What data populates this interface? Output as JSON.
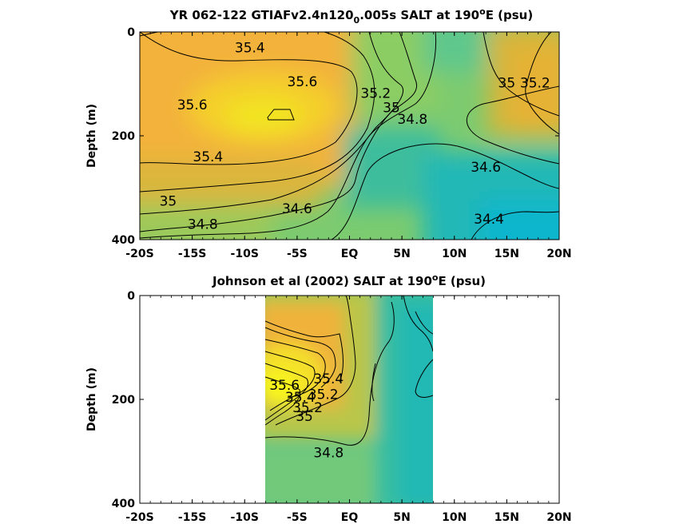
{
  "chart_data": [
    {
      "type": "contour",
      "title_prefix": "YR 062-122 GTIAFv2.4n120",
      "title_sub": "0",
      "title_mid": ".005s SALT at 190",
      "title_sup": "o",
      "title_suffix": "E (psu)",
      "ylabel": "Depth (m)",
      "xlim": [
        -20,
        20
      ],
      "ylim": [
        0,
        400
      ],
      "y_reversed": true,
      "xticks": [
        "-20S",
        "-15S",
        "-10S",
        "-5S",
        "EQ",
        "5N",
        "10N",
        "15N",
        "20N"
      ],
      "yticks": [
        "0",
        "200",
        "400"
      ],
      "contour_labels": [
        {
          "text": "35.4",
          "lat": -9.5,
          "depth": 30
        },
        {
          "text": "35.6",
          "lat": -4.5,
          "depth": 95
        },
        {
          "text": "35.6",
          "lat": -15,
          "depth": 140
        },
        {
          "text": "35.2",
          "lat": 2.5,
          "depth": 118
        },
        {
          "text": "35",
          "lat": 4,
          "depth": 145
        },
        {
          "text": "34.8",
          "lat": 6,
          "depth": 168
        },
        {
          "text": "35",
          "lat": 15,
          "depth": 98
        },
        {
          "text": "35.2",
          "lat": 17.7,
          "depth": 98
        },
        {
          "text": "35.4",
          "lat": -13.5,
          "depth": 240
        },
        {
          "text": "34.6",
          "lat": 13,
          "depth": 260
        },
        {
          "text": "35",
          "lat": -17.3,
          "depth": 325
        },
        {
          "text": "34.8",
          "lat": -14,
          "depth": 370
        },
        {
          "text": "34.6",
          "lat": -5,
          "depth": 340
        },
        {
          "text": "34.4",
          "lat": 13.3,
          "depth": 360
        }
      ]
    },
    {
      "type": "contour",
      "title_prefix": "Johnson et al (2002) SALT at 190",
      "title_sup": "o",
      "title_suffix": "E (psu)",
      "ylabel": "Depth (m)",
      "xlim": [
        -20,
        20
      ],
      "ylim": [
        0,
        400
      ],
      "y_reversed": true,
      "data_lat_range": [
        -8,
        8
      ],
      "xticks": [
        "-20S",
        "-15S",
        "-10S",
        "-5S",
        "EQ",
        "5N",
        "10N",
        "15N",
        "20N"
      ],
      "yticks": [
        "0",
        "200",
        "400"
      ],
      "contour_labels": [
        {
          "text": "35.4",
          "lat": -2.0,
          "depth": 160
        },
        {
          "text": "35.2",
          "lat": -2.5,
          "depth": 190
        },
        {
          "text": "35.6",
          "lat": -6.2,
          "depth": 172
        },
        {
          "text": "35.4",
          "lat": -4.7,
          "depth": 195
        },
        {
          "text": "35.2",
          "lat": -4.0,
          "depth": 215
        },
        {
          "text": "35",
          "lat": -4.3,
          "depth": 232
        },
        {
          "text": "34.8",
          "lat": -2.0,
          "depth": 302
        }
      ]
    }
  ]
}
